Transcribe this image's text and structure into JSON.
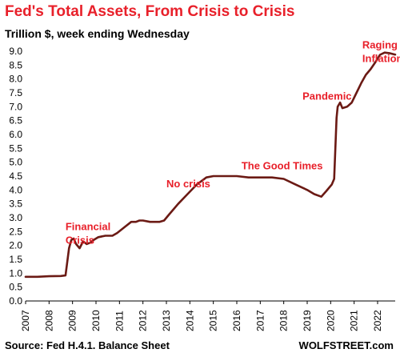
{
  "chart_data": {
    "type": "line",
    "title": "Fed's Total Assets, From Crisis to Crisis",
    "subtitle": "Trillion $, week ending Wednesday",
    "source": "Source: Fed H.4.1. Balance Sheet",
    "brand": "WOLFSTREET.com",
    "xlabel": "",
    "ylabel": "",
    "ylim": [
      0,
      9.0
    ],
    "xlim": [
      2007.0,
      2022.75
    ],
    "y_ticks": [
      "0.0",
      "0.5",
      "1.0",
      "1.5",
      "2.0",
      "2.5",
      "3.0",
      "3.5",
      "4.0",
      "4.5",
      "5.0",
      "5.5",
      "6.0",
      "6.5",
      "7.0",
      "7.5",
      "8.0",
      "8.5",
      "9.0"
    ],
    "x_ticks": [
      "2007",
      "2008",
      "2009",
      "2010",
      "2011",
      "2012",
      "2013",
      "2014",
      "2015",
      "2016",
      "2017",
      "2018",
      "2019",
      "2020",
      "2021",
      "2022"
    ],
    "grid": false,
    "legend": "none",
    "line_color": "#6b1a14",
    "series": [
      {
        "name": "",
        "x": [
          2007.0,
          2007.5,
          2008.0,
          2008.5,
          2008.7,
          2008.85,
          2008.95,
          2009.05,
          2009.15,
          2009.3,
          2009.45,
          2009.6,
          2009.75,
          2009.9,
          2010.1,
          2010.4,
          2010.7,
          2010.9,
          2011.2,
          2011.5,
          2011.7,
          2011.85,
          2012.0,
          2012.3,
          2012.7,
          2012.9,
          2013.1,
          2013.5,
          2013.9,
          2014.3,
          2014.7,
          2015.0,
          2015.5,
          2016.0,
          2016.5,
          2017.0,
          2017.5,
          2018.0,
          2018.5,
          2019.0,
          2019.3,
          2019.6,
          2019.8,
          2019.95,
          2020.05,
          2020.15,
          2020.2,
          2020.25,
          2020.3,
          2020.4,
          2020.5,
          2020.7,
          2020.9,
          2021.1,
          2021.3,
          2021.5,
          2021.7,
          2021.9,
          2022.1,
          2022.3,
          2022.5,
          2022.75
        ],
        "y": [
          0.87,
          0.87,
          0.89,
          0.9,
          0.92,
          1.9,
          2.2,
          2.25,
          2.05,
          1.9,
          2.15,
          2.05,
          2.1,
          2.2,
          2.3,
          2.35,
          2.35,
          2.45,
          2.65,
          2.85,
          2.85,
          2.9,
          2.9,
          2.85,
          2.85,
          2.9,
          3.1,
          3.5,
          3.85,
          4.2,
          4.45,
          4.5,
          4.5,
          4.5,
          4.45,
          4.45,
          4.45,
          4.4,
          4.2,
          4.0,
          3.85,
          3.76,
          3.95,
          4.1,
          4.2,
          4.4,
          5.5,
          6.6,
          7.0,
          7.15,
          6.95,
          7.0,
          7.15,
          7.5,
          7.85,
          8.15,
          8.35,
          8.6,
          8.87,
          8.95,
          8.93,
          8.88
        ]
      }
    ],
    "annotations": [
      {
        "lines": [
          "Financial",
          "Crisis"
        ],
        "x": 2008.7,
        "y": 2.55
      },
      {
        "lines": [
          "No crisis"
        ],
        "x": 2013.0,
        "y": 4.1
      },
      {
        "lines": [
          "The Good Times"
        ],
        "x": 2016.2,
        "y": 4.75
      },
      {
        "lines": [
          "Pandemic"
        ],
        "x": 2018.8,
        "y": 7.25
      },
      {
        "lines": [
          "Raging",
          "Inflation"
        ],
        "x": 2021.35,
        "y": 9.1
      }
    ]
  }
}
